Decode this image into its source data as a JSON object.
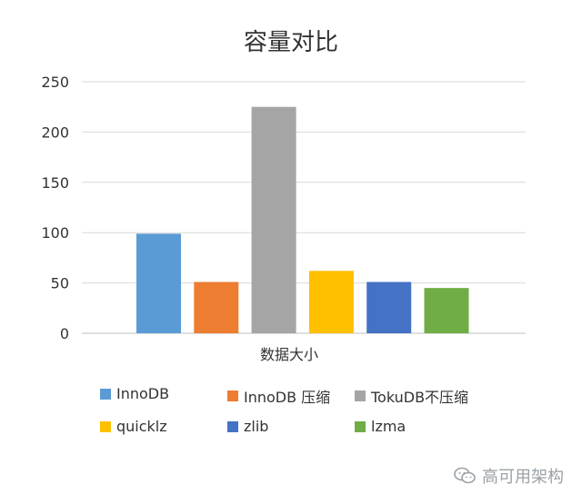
{
  "chart_data": {
    "type": "bar",
    "title": "容量对比",
    "xlabel": "数据大小",
    "ylabel": "",
    "ylim": [
      0,
      250
    ],
    "yticks": [
      0,
      50,
      100,
      150,
      200,
      250
    ],
    "grid": true,
    "legend": "bottom",
    "categories": [
      "数据大小"
    ],
    "series": [
      {
        "name": "InnoDB",
        "values": [
          99
        ],
        "color": "#5B9BD5"
      },
      {
        "name": "InnoDB 压缩",
        "values": [
          51
        ],
        "color": "#ED7D31"
      },
      {
        "name": "TokuDB不压缩",
        "values": [
          225
        ],
        "color": "#A5A5A5"
      },
      {
        "name": "quicklz",
        "values": [
          62
        ],
        "color": "#FFC000"
      },
      {
        "name": "zlib",
        "values": [
          51
        ],
        "color": "#4472C4"
      },
      {
        "name": "lzma",
        "values": [
          45
        ],
        "color": "#70AD47"
      }
    ]
  },
  "watermark": {
    "text": "高可用架构",
    "icon": "wechat-icon"
  }
}
